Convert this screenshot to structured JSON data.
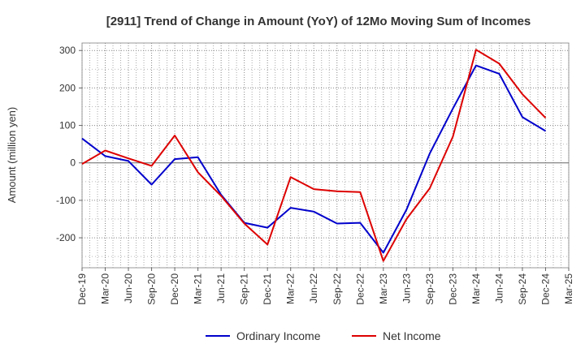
{
  "chart_data": {
    "type": "line",
    "title": "[2911]  Trend of Change in Amount (YoY) of 12Mo Moving Sum of Incomes",
    "xlabel": "",
    "ylabel": "Amount (million yen)",
    "ylim": [
      -280,
      320
    ],
    "yticks": [
      300,
      200,
      100,
      0,
      -100,
      -200
    ],
    "ytick_labels": [
      "300",
      "200",
      "100",
      "0",
      "-100",
      "-200"
    ],
    "categories": [
      "Dec-19",
      "Mar-20",
      "Jun-20",
      "Sep-20",
      "Dec-20",
      "Mar-21",
      "Jun-21",
      "Sep-21",
      "Dec-21",
      "Mar-22",
      "Jun-22",
      "Sep-22",
      "Dec-22",
      "Mar-23",
      "Jun-23",
      "Sep-23",
      "Dec-23",
      "Mar-24",
      "Jun-24",
      "Sep-24",
      "Dec-24",
      "Mar-25"
    ],
    "grid": true,
    "legend_position": "bottom-center",
    "series": [
      {
        "name": "Ordinary Income",
        "color": "#0000cc",
        "values": [
          65,
          18,
          5,
          -58,
          10,
          15,
          -85,
          -160,
          -173,
          -120,
          -130,
          -162,
          -160,
          -240,
          -125,
          25,
          145,
          260,
          238,
          122,
          85,
          null
        ]
      },
      {
        "name": "Net Income",
        "color": "#dd0000",
        "values": [
          -3,
          33,
          12,
          -8,
          73,
          -25,
          -88,
          -162,
          -218,
          -38,
          -70,
          -76,
          -78,
          -262,
          -150,
          -68,
          70,
          302,
          265,
          183,
          120,
          null
        ]
      }
    ]
  }
}
